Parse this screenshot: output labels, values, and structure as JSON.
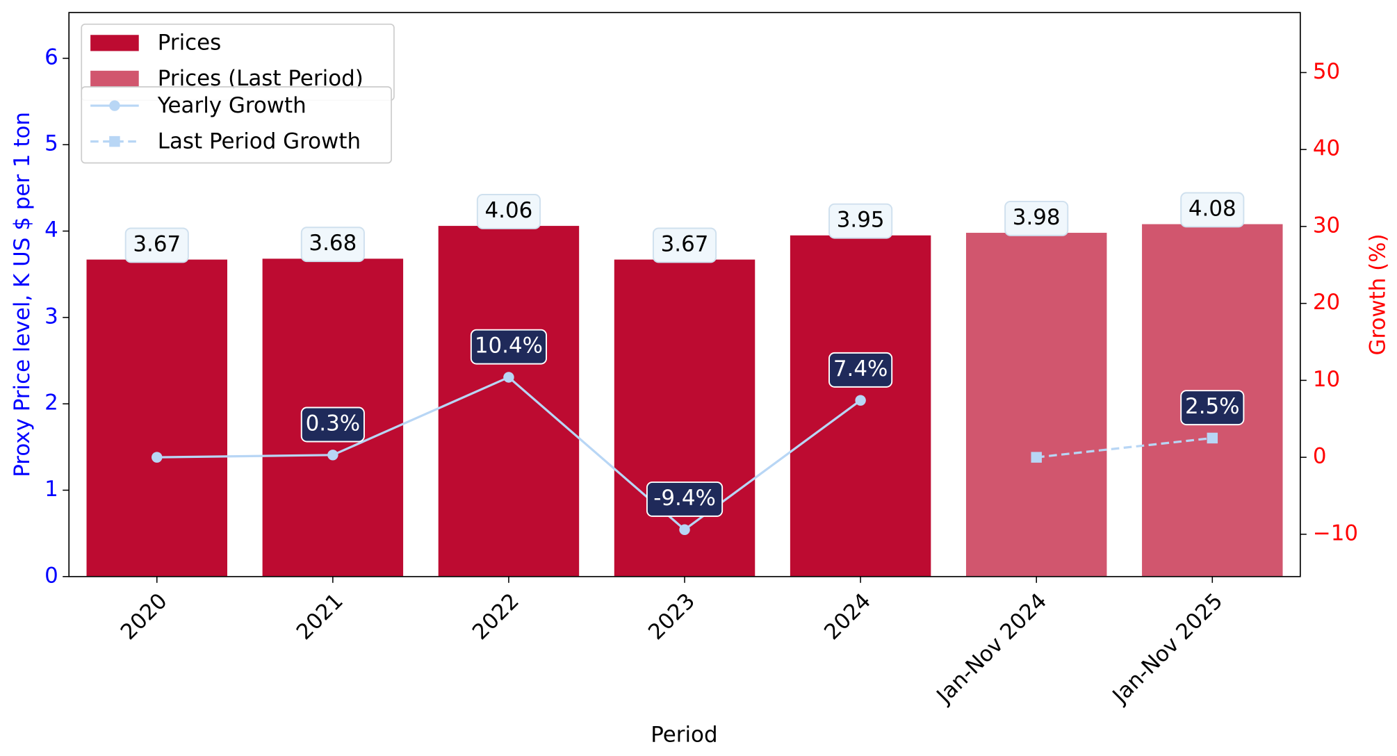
{
  "chart_data": {
    "type": "bar",
    "x_label": "Period",
    "y_label": "Proxy Price level, K US $ per 1 ton",
    "y2_label": "Growth (%)",
    "categories": [
      "2020",
      "2021",
      "2022",
      "2023",
      "2024",
      "Jan-Nov 2024",
      "Jan-Nov 2025"
    ],
    "ylim": [
      0,
      6.53
    ],
    "yticks": [
      0,
      1,
      2,
      3,
      4,
      5,
      6
    ],
    "y2lim": [
      -15.5,
      57.8
    ],
    "y2ticks": [
      -10,
      0,
      10,
      20,
      30,
      40,
      50
    ],
    "y_axis_color": "#0000ff",
    "y2_axis_color": "#ff0000",
    "series": [
      {
        "name": "Prices",
        "type": "bar",
        "color": "#bd0b31",
        "values": [
          3.67,
          3.68,
          4.06,
          3.67,
          3.95,
          null,
          null
        ]
      },
      {
        "name": "Prices (Last Period)",
        "type": "bar",
        "color": "#d1566e",
        "values": [
          null,
          null,
          null,
          null,
          null,
          3.98,
          4.08
        ]
      },
      {
        "name": "Yearly Growth",
        "type": "line",
        "axis": "y2",
        "color": "#b8d6f5",
        "dash": false,
        "marker": "circle",
        "values": [
          0,
          0.3,
          10.4,
          -9.4,
          7.4,
          null,
          null
        ],
        "value_labels": [
          null,
          "0.3%",
          "10.4%",
          "-9.4%",
          "7.4%",
          null,
          null
        ]
      },
      {
        "name": "Last Period Growth",
        "type": "line",
        "axis": "y2",
        "color": "#b8d6f5",
        "dash": true,
        "marker": "square",
        "values": [
          null,
          null,
          null,
          null,
          null,
          0,
          2.5
        ],
        "value_labels": [
          null,
          null,
          null,
          null,
          null,
          null,
          "2.5%"
        ]
      }
    ]
  }
}
